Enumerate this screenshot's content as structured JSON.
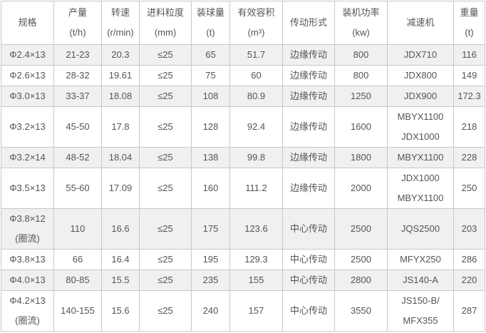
{
  "headers": [
    {
      "label": "规格",
      "unit": ""
    },
    {
      "label": "产量",
      "unit": "(t/h)"
    },
    {
      "label": "转速",
      "unit": "(r/min)"
    },
    {
      "label": "进料粒度",
      "unit": "(mm)"
    },
    {
      "label": "装球量",
      "unit": "(t)"
    },
    {
      "label": "有效容积",
      "unit": "(m³)"
    },
    {
      "label": "传动形式",
      "unit": ""
    },
    {
      "label": "装机功率",
      "unit": "(kw)"
    },
    {
      "label": "减速机",
      "unit": ""
    },
    {
      "label": "重量",
      "unit": "(t)"
    }
  ],
  "rows": [
    {
      "spec": [
        "Φ2.4×13"
      ],
      "output": "21-23",
      "speed": "20.3",
      "feed": "≤25",
      "ball": "65",
      "volume": "51.7",
      "drive": "边缘传动",
      "power": "800",
      "reducer": [
        "JDX710"
      ],
      "weight": "116"
    },
    {
      "spec": [
        "Φ2.6×13"
      ],
      "output": "28-32",
      "speed": "19.61",
      "feed": "≤25",
      "ball": "75",
      "volume": "60",
      "drive": "边缘传动",
      "power": "800",
      "reducer": [
        "JDX800"
      ],
      "weight": "149"
    },
    {
      "spec": [
        "Φ3.0×13"
      ],
      "output": "33-37",
      "speed": "18.08",
      "feed": "≤25",
      "ball": "108",
      "volume": "80.9",
      "drive": "边缘传动",
      "power": "1250",
      "reducer": [
        "JDX900"
      ],
      "weight": "172.3"
    },
    {
      "spec": [
        "Φ3.2×13"
      ],
      "output": "45-50",
      "speed": "17.8",
      "feed": "≤25",
      "ball": "128",
      "volume": "92.4",
      "drive": "边缘传动",
      "power": "1600",
      "reducer": [
        "MBYX1100",
        "JDX1000"
      ],
      "weight": "218"
    },
    {
      "spec": [
        "Φ3.2×14"
      ],
      "output": "48-52",
      "speed": "18.04",
      "feed": "≤25",
      "ball": "138",
      "volume": "99.8",
      "drive": "边缘传动",
      "power": "1800",
      "reducer": [
        "MBYX1100"
      ],
      "weight": "228"
    },
    {
      "spec": [
        "Φ3.5×13"
      ],
      "output": "55-60",
      "speed": "17.09",
      "feed": "≤25",
      "ball": "160",
      "volume": "111.2",
      "drive": "边缘传动",
      "power": "2000",
      "reducer": [
        "JDX1000",
        "MBYX1100"
      ],
      "weight": "250"
    },
    {
      "spec": [
        "Φ3.8×12",
        "(圈流)"
      ],
      "output": "110",
      "speed": "16.6",
      "feed": "≤25",
      "ball": "175",
      "volume": "123.6",
      "drive": "中心传动",
      "power": "2500",
      "reducer": [
        "JQS2500"
      ],
      "weight": "203"
    },
    {
      "spec": [
        "Φ3.8×13"
      ],
      "output": "66",
      "speed": "16.4",
      "feed": "≤25",
      "ball": "195",
      "volume": "129.3",
      "drive": "中心传动",
      "power": "2500",
      "reducer": [
        "MFYX250"
      ],
      "weight": "286"
    },
    {
      "spec": [
        "Φ4.0×13"
      ],
      "output": "80-85",
      "speed": "15.5",
      "feed": "≤25",
      "ball": "235",
      "volume": "155",
      "drive": "中心传动",
      "power": "2800",
      "reducer": [
        "JS140-A"
      ],
      "weight": "220"
    },
    {
      "spec": [
        "Φ4.2×13",
        "(圈流)"
      ],
      "output": "140-155",
      "speed": "15.6",
      "feed": "≤25",
      "ball": "240",
      "volume": "157",
      "drive": "中心传动",
      "power": "3550",
      "reducer": [
        "JS150-B/",
        "MFX355"
      ],
      "weight": "287"
    }
  ]
}
